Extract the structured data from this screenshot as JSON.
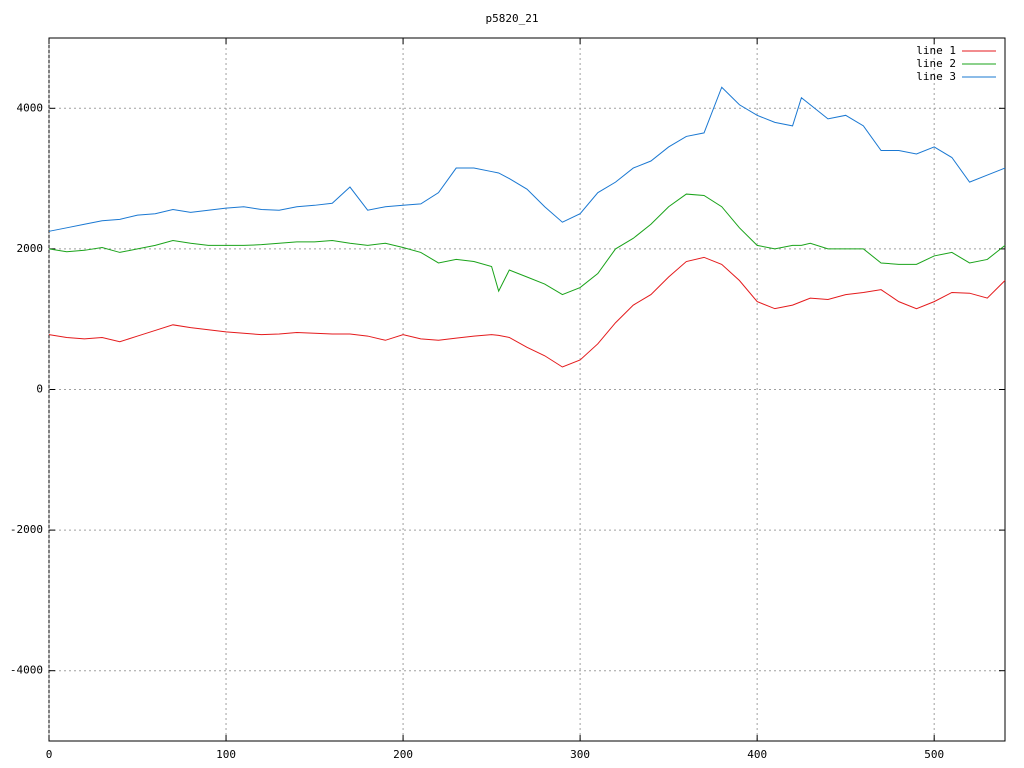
{
  "chart_data": {
    "type": "line",
    "title": "p5820_21",
    "x": [
      0,
      10,
      20,
      30,
      40,
      50,
      60,
      70,
      80,
      90,
      100,
      110,
      120,
      130,
      140,
      150,
      160,
      170,
      180,
      190,
      200,
      210,
      220,
      230,
      240,
      250,
      254,
      260,
      270,
      280,
      290,
      300,
      310,
      320,
      330,
      340,
      350,
      360,
      370,
      380,
      390,
      400,
      410,
      420,
      425,
      430,
      440,
      450,
      460,
      470,
      480,
      490,
      500,
      510,
      520,
      530,
      540
    ],
    "series": [
      {
        "name": "line 1",
        "color": "#e41a1c",
        "values": [
          780,
          740,
          720,
          740,
          680,
          760,
          840,
          920,
          880,
          850,
          820,
          800,
          780,
          790,
          810,
          800,
          790,
          790,
          760,
          700,
          780,
          720,
          700,
          730,
          760,
          780,
          770,
          740,
          600,
          480,
          320,
          420,
          650,
          950,
          1200,
          1350,
          1600,
          1820,
          1880,
          1780,
          1550,
          1250,
          1150,
          1200,
          1250,
          1300,
          1280,
          1350,
          1380,
          1420,
          1250,
          1150,
          1250,
          1380,
          1370,
          1300,
          1550
        ]
      },
      {
        "name": "line 2",
        "color": "#1aa31a",
        "values": [
          2000,
          1960,
          1980,
          2020,
          1950,
          2000,
          2050,
          2120,
          2080,
          2050,
          2050,
          2050,
          2060,
          2080,
          2100,
          2100,
          2120,
          2080,
          2050,
          2080,
          2020,
          1950,
          1800,
          1850,
          1820,
          1750,
          1400,
          1700,
          1600,
          1500,
          1350,
          1450,
          1650,
          2000,
          2150,
          2350,
          2600,
          2780,
          2760,
          2600,
          2300,
          2050,
          2000,
          2050,
          2050,
          2080,
          2000,
          2000,
          2000,
          1800,
          1780,
          1780,
          1900,
          1950,
          1800,
          1850,
          2050
        ]
      },
      {
        "name": "line 3",
        "color": "#1a78d2",
        "values": [
          2250,
          2300,
          2350,
          2400,
          2420,
          2480,
          2500,
          2560,
          2520,
          2550,
          2580,
          2600,
          2560,
          2550,
          2600,
          2620,
          2650,
          2880,
          2550,
          2600,
          2620,
          2640,
          2800,
          3150,
          3150,
          3100,
          3080,
          3000,
          2850,
          2600,
          2380,
          2500,
          2800,
          2950,
          3150,
          3250,
          3450,
          3600,
          3650,
          4300,
          4050,
          3900,
          3800,
          3750,
          4150,
          4050,
          3850,
          3900,
          3750,
          3400,
          3400,
          3350,
          3450,
          3300,
          2950,
          3050,
          3150
        ]
      }
    ],
    "xlim": [
      0,
      540
    ],
    "ylim": [
      -5000,
      5000
    ],
    "xticks": [
      0,
      100,
      200,
      300,
      400,
      500
    ],
    "yticks": [
      -4000,
      -2000,
      0,
      2000,
      4000
    ],
    "grid": true,
    "legend": "top-right"
  }
}
